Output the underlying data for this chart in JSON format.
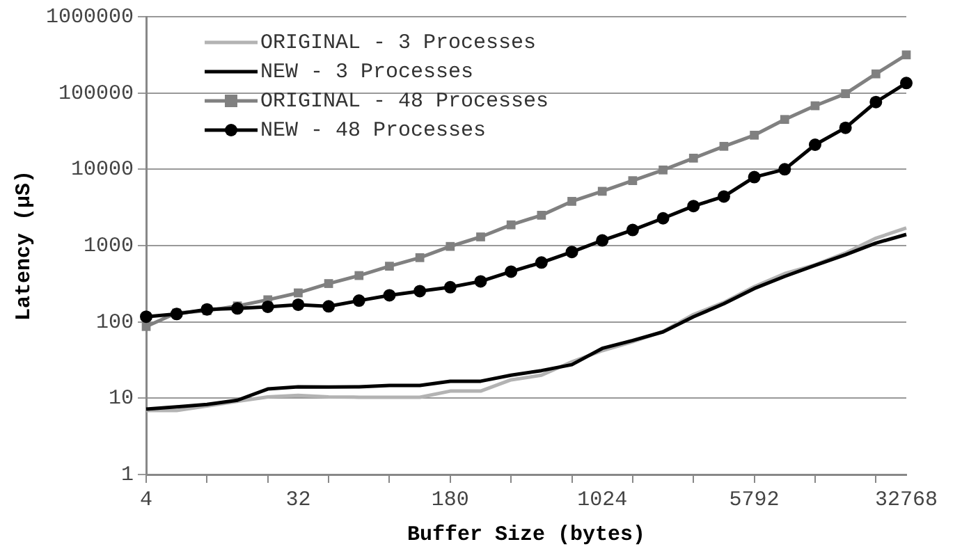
{
  "chart_data": {
    "type": "line",
    "xlabel": "Buffer Size (bytes)",
    "ylabel": "Latency (µS)",
    "categories": [
      "4",
      null,
      null,
      null,
      null,
      "32",
      null,
      null,
      null,
      null,
      "180",
      null,
      null,
      null,
      null,
      "1024",
      null,
      null,
      null,
      null,
      "5792",
      null,
      null,
      null,
      null,
      "32768"
    ],
    "series": [
      {
        "name": "ORIGINAL - 3 Processes",
        "color": "#b3b3b3",
        "marker": "none",
        "values": [
          6.9,
          6.9,
          7.9,
          9.1,
          10.4,
          10.9,
          10.4,
          10.3,
          10.3,
          10.3,
          12.4,
          12.4,
          17.4,
          20,
          30,
          42,
          55,
          75,
          125,
          180,
          290,
          430,
          560,
          800,
          1250,
          1700
        ]
      },
      {
        "name": "NEW - 3 Processes",
        "color": "#000000",
        "marker": "none",
        "values": [
          7.2,
          7.7,
          8.3,
          9.4,
          13.2,
          14.1,
          14,
          14.1,
          14.7,
          14.7,
          16.7,
          16.7,
          20,
          23,
          27.5,
          45,
          57,
          74,
          117,
          173,
          274,
          395,
          550,
          760,
          1080,
          1400
        ]
      },
      {
        "name": "ORIGINAL - 48 Processes",
        "color": "#808080",
        "marker": "square",
        "values": [
          87,
          131,
          140,
          162,
          195,
          240,
          318,
          405,
          537,
          695,
          975,
          1300,
          1870,
          2500,
          3800,
          5150,
          7100,
          9800,
          14000,
          20000,
          28000,
          45000,
          68000,
          98000,
          178000,
          316000
        ]
      },
      {
        "name": "NEW - 48 Processes",
        "color": "#000000",
        "marker": "circle",
        "values": [
          117,
          127,
          146,
          150,
          158,
          168,
          160,
          190,
          223,
          253,
          285,
          340,
          456,
          600,
          825,
          1170,
          1600,
          2280,
          3300,
          4400,
          7900,
          10000,
          21000,
          35000,
          76000,
          135000
        ]
      }
    ],
    "log": "y",
    "ylim": [
      1,
      1000000
    ],
    "yticks": [
      1,
      10,
      100,
      1000,
      10000,
      100000,
      1000000
    ],
    "grid": "y",
    "legend": "top left",
    "line_style": "solid"
  }
}
